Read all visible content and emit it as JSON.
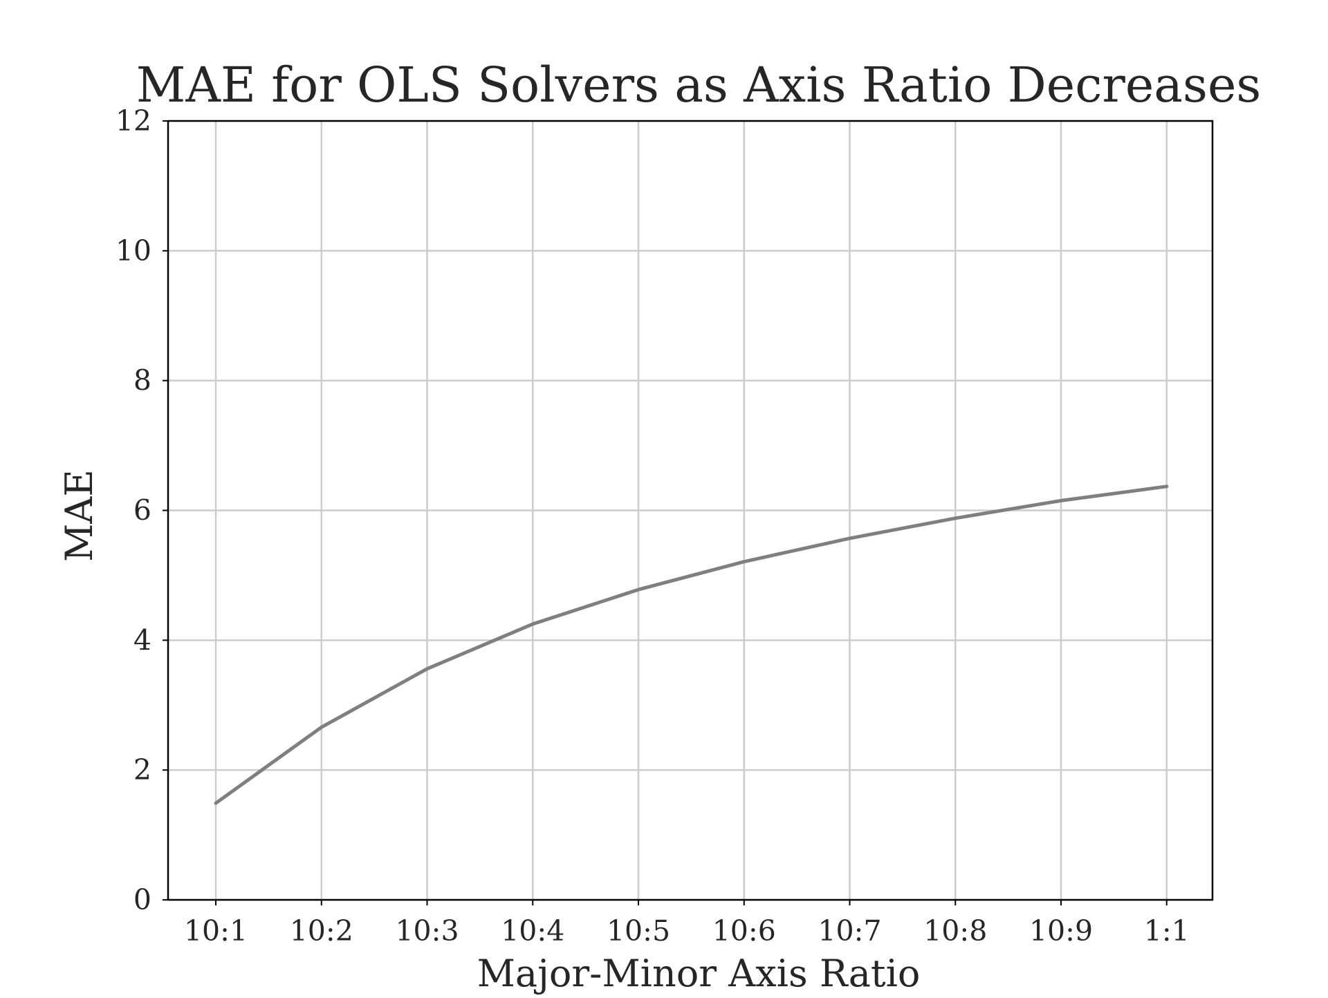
{
  "chart_data": {
    "type": "line",
    "title": "MAE for OLS Solvers as Axis Ratio Decreases",
    "xlabel": "Major-Minor Axis Ratio",
    "ylabel": "MAE",
    "categories": [
      "10:1",
      "10:2",
      "10:3",
      "10:4",
      "10:5",
      "10:6",
      "10:7",
      "10:8",
      "10:9",
      "1:1"
    ],
    "series": [
      {
        "values": [
          1.49,
          2.66,
          3.56,
          4.25,
          4.78,
          5.21,
          5.57,
          5.88,
          6.15,
          6.37
        ],
        "color": "#7f7f7f"
      }
    ],
    "ylim": [
      0,
      12
    ],
    "yticks": [
      0,
      2,
      4,
      6,
      8,
      10,
      12
    ],
    "grid": true,
    "grid_color": "#cccccc",
    "axes_color": "#000000",
    "text_color": "#262626"
  }
}
